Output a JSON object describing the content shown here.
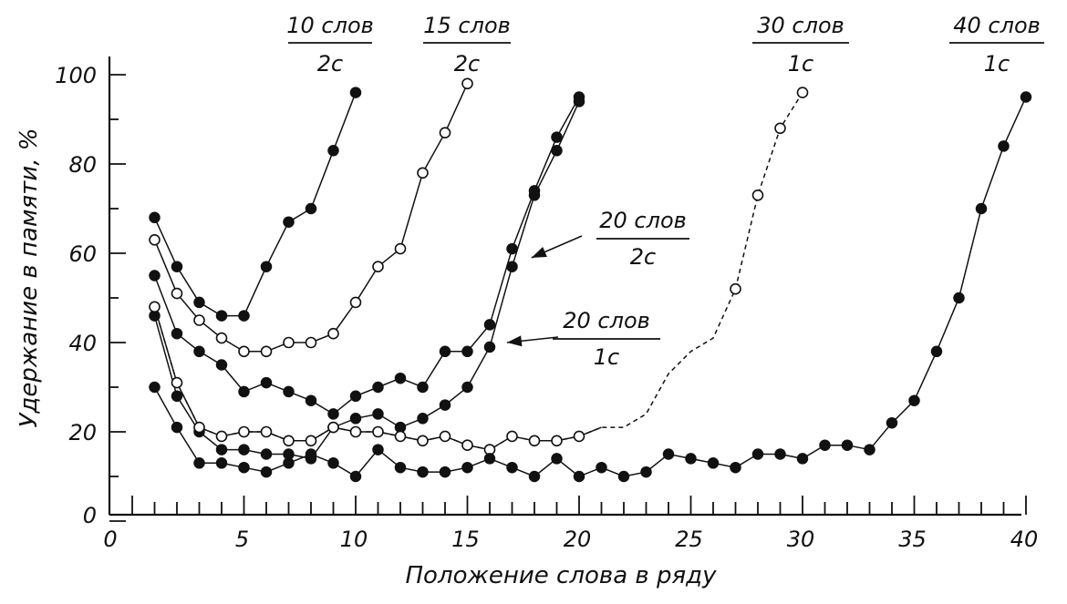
{
  "chart_data": {
    "type": "line",
    "xlabel": "Положение слова в ряду",
    "ylabel": "Удержание в памяти, %",
    "xlim": [
      0,
      40
    ],
    "ylim": [
      0,
      100
    ],
    "x_ticks": [
      0,
      5,
      10,
      15,
      20,
      25,
      30,
      35,
      40
    ],
    "x_tick_labels": [
      "0",
      "5",
      "10",
      "15",
      "20",
      "25",
      "30",
      "35",
      "40"
    ],
    "y_ticks": [
      0,
      20,
      40,
      60,
      80,
      100
    ],
    "y_tick_labels": [
      "0",
      "20",
      "40",
      "60",
      "80",
      "100"
    ],
    "grid": false,
    "series": [
      {
        "name": "10 слов / 2с",
        "label_top": "10 слов",
        "label_bottom": "2с",
        "marker": "filled",
        "x": [
          1,
          2,
          3,
          4,
          5,
          6,
          7,
          8,
          9,
          10
        ],
        "y": [
          68,
          57,
          49,
          46,
          46,
          57,
          67,
          70,
          83,
          96
        ]
      },
      {
        "name": "15 слов / 2с",
        "label_top": "15 слов",
        "label_bottom": "2с",
        "marker": "open",
        "x": [
          1,
          2,
          3,
          4,
          5,
          6,
          7,
          8,
          9,
          10,
          11,
          12,
          13,
          14,
          15
        ],
        "y": [
          63,
          51,
          45,
          41,
          38,
          38,
          40,
          40,
          42,
          49,
          57,
          61,
          78,
          87,
          98
        ]
      },
      {
        "name": "20 слов / 2с",
        "label_top": "20 слов",
        "label_bottom": "2с",
        "marker": "filled",
        "x": [
          1,
          2,
          3,
          4,
          5,
          6,
          7,
          8,
          9,
          10,
          11,
          12,
          13,
          14,
          15,
          16,
          17,
          18,
          19,
          20
        ],
        "y": [
          55,
          42,
          38,
          35,
          29,
          31,
          29,
          27,
          24,
          28,
          30,
          32,
          30,
          38,
          38,
          44,
          61,
          74,
          86,
          95
        ]
      },
      {
        "name": "20 слов / 1с",
        "label_top": "20 слов",
        "label_bottom": "1с",
        "marker": "filled",
        "x": [
          1,
          2,
          3,
          4,
          5,
          6,
          7,
          8,
          9,
          10,
          11,
          12,
          13,
          14,
          15,
          16,
          17,
          18,
          19,
          20
        ],
        "y": [
          46,
          28,
          20,
          16,
          16,
          15,
          15,
          14,
          21,
          23,
          24,
          21,
          23,
          26,
          30,
          39,
          57,
          73,
          83,
          94
        ]
      },
      {
        "name": "30 слов / 1с",
        "label_top": "30 слов",
        "label_bottom": "1с",
        "marker": "open",
        "x": [
          1,
          2,
          3,
          4,
          5,
          6,
          7,
          8,
          9,
          10,
          11,
          12,
          13,
          14,
          15,
          16,
          17,
          18,
          19,
          20,
          21,
          22,
          23,
          24,
          25,
          26,
          27,
          28,
          29,
          30
        ],
        "y": [
          48,
          31,
          21,
          19,
          20,
          20,
          18,
          18,
          21,
          20,
          20,
          19,
          18,
          19,
          17,
          16,
          19,
          18,
          18,
          19,
          21,
          21,
          24,
          33,
          38,
          41,
          52,
          73,
          88,
          96
        ]
      },
      {
        "name": "40 слов / 1с",
        "label_top": "40 слов",
        "label_bottom": "1с",
        "marker": "filled",
        "x": [
          1,
          2,
          3,
          4,
          5,
          6,
          7,
          8,
          9,
          10,
          11,
          12,
          13,
          14,
          15,
          16,
          17,
          18,
          19,
          20,
          21,
          22,
          23,
          24,
          25,
          26,
          27,
          28,
          29,
          30,
          31,
          32,
          33,
          34,
          35,
          36,
          37,
          38,
          39,
          40
        ],
        "y": [
          30,
          21,
          13,
          13,
          12,
          11,
          13,
          15,
          13,
          10,
          16,
          12,
          11,
          11,
          12,
          14,
          12,
          10,
          14,
          10,
          12,
          10,
          11,
          15,
          14,
          13,
          12,
          15,
          15,
          14,
          17,
          17,
          16,
          22,
          27,
          38,
          50,
          70,
          84,
          95
        ]
      }
    ]
  }
}
